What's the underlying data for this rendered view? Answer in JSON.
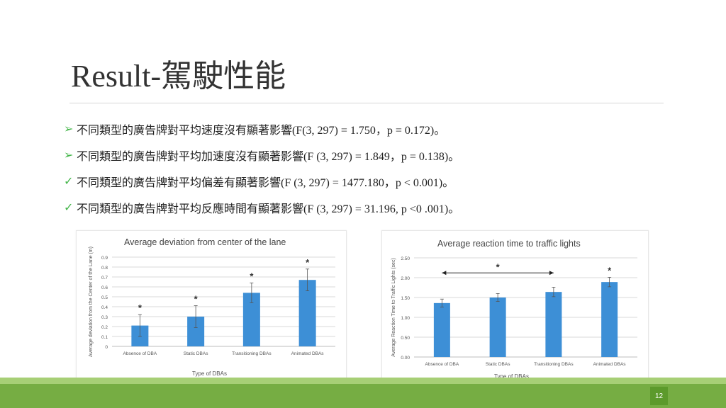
{
  "slide": {
    "title": "Result-駕駛性能",
    "page_number": "12",
    "bullets": [
      {
        "marker": "➢",
        "text": "不同類型的廣告牌對平均速度沒有顯著影響(F(3, 297) = 1.750，p = 0.172)。"
      },
      {
        "marker": "➢",
        "text": "不同類型的廣告牌對平均加速度沒有顯著影響(F (3, 297) = 1.849，p = 0.138)。"
      },
      {
        "marker": "✓",
        "text": "不同類型的廣告牌對平均偏差有顯著影響(F (3, 297) = 1477.180，p < 0.001)。"
      },
      {
        "marker": "✓",
        "text": "不同類型的廣告牌對平均反應時間有顯著影響(F (3, 297) = 31.196, p <0 .001)。"
      }
    ]
  },
  "colors": {
    "bar": "#3d8fd6",
    "accent_green": "#76ad43",
    "light_green": "#a7cf76",
    "marker": "#44b64a"
  },
  "chart_data": [
    {
      "type": "bar",
      "title": "Average deviation from center of the lane",
      "xlabel": "Type of DBAs",
      "ylabel": "Average deviation from the Center of the Lane (m)",
      "categories": [
        "Absence of DBA",
        "Static DBAs",
        "Transitioning DBAs",
        "Animated DBAs"
      ],
      "values": [
        0.21,
        0.3,
        0.54,
        0.67
      ],
      "error": [
        0.11,
        0.11,
        0.1,
        0.11
      ],
      "significance": [
        "*",
        "*",
        "*",
        "*"
      ],
      "ylim": [
        0,
        0.9
      ],
      "yticks": [
        "0",
        "0.1",
        "0.2",
        "0.3",
        "0.4",
        "0.5",
        "0.6",
        "0.7",
        "0.8",
        "0.9"
      ],
      "grid": true
    },
    {
      "type": "bar",
      "title": "Average reaction time to traffic lights",
      "xlabel": "Type of DBAs",
      "ylabel": "Average Reaction Time to Traffic Lights (sec)",
      "categories": [
        "Absence of DBA",
        "Static DBAs",
        "Transitioning DBAs",
        "Animated DBAs"
      ],
      "values": [
        1.36,
        1.5,
        1.64,
        1.89
      ],
      "error": [
        0.1,
        0.1,
        0.12,
        0.12
      ],
      "bracket_label": "*",
      "significance": [
        "",
        "",
        "",
        "*"
      ],
      "ylim": [
        0,
        2.5
      ],
      "yticks": [
        "0.00",
        "0.50",
        "1.00",
        "1.50",
        "2.00",
        "2.50"
      ],
      "grid": true
    }
  ]
}
